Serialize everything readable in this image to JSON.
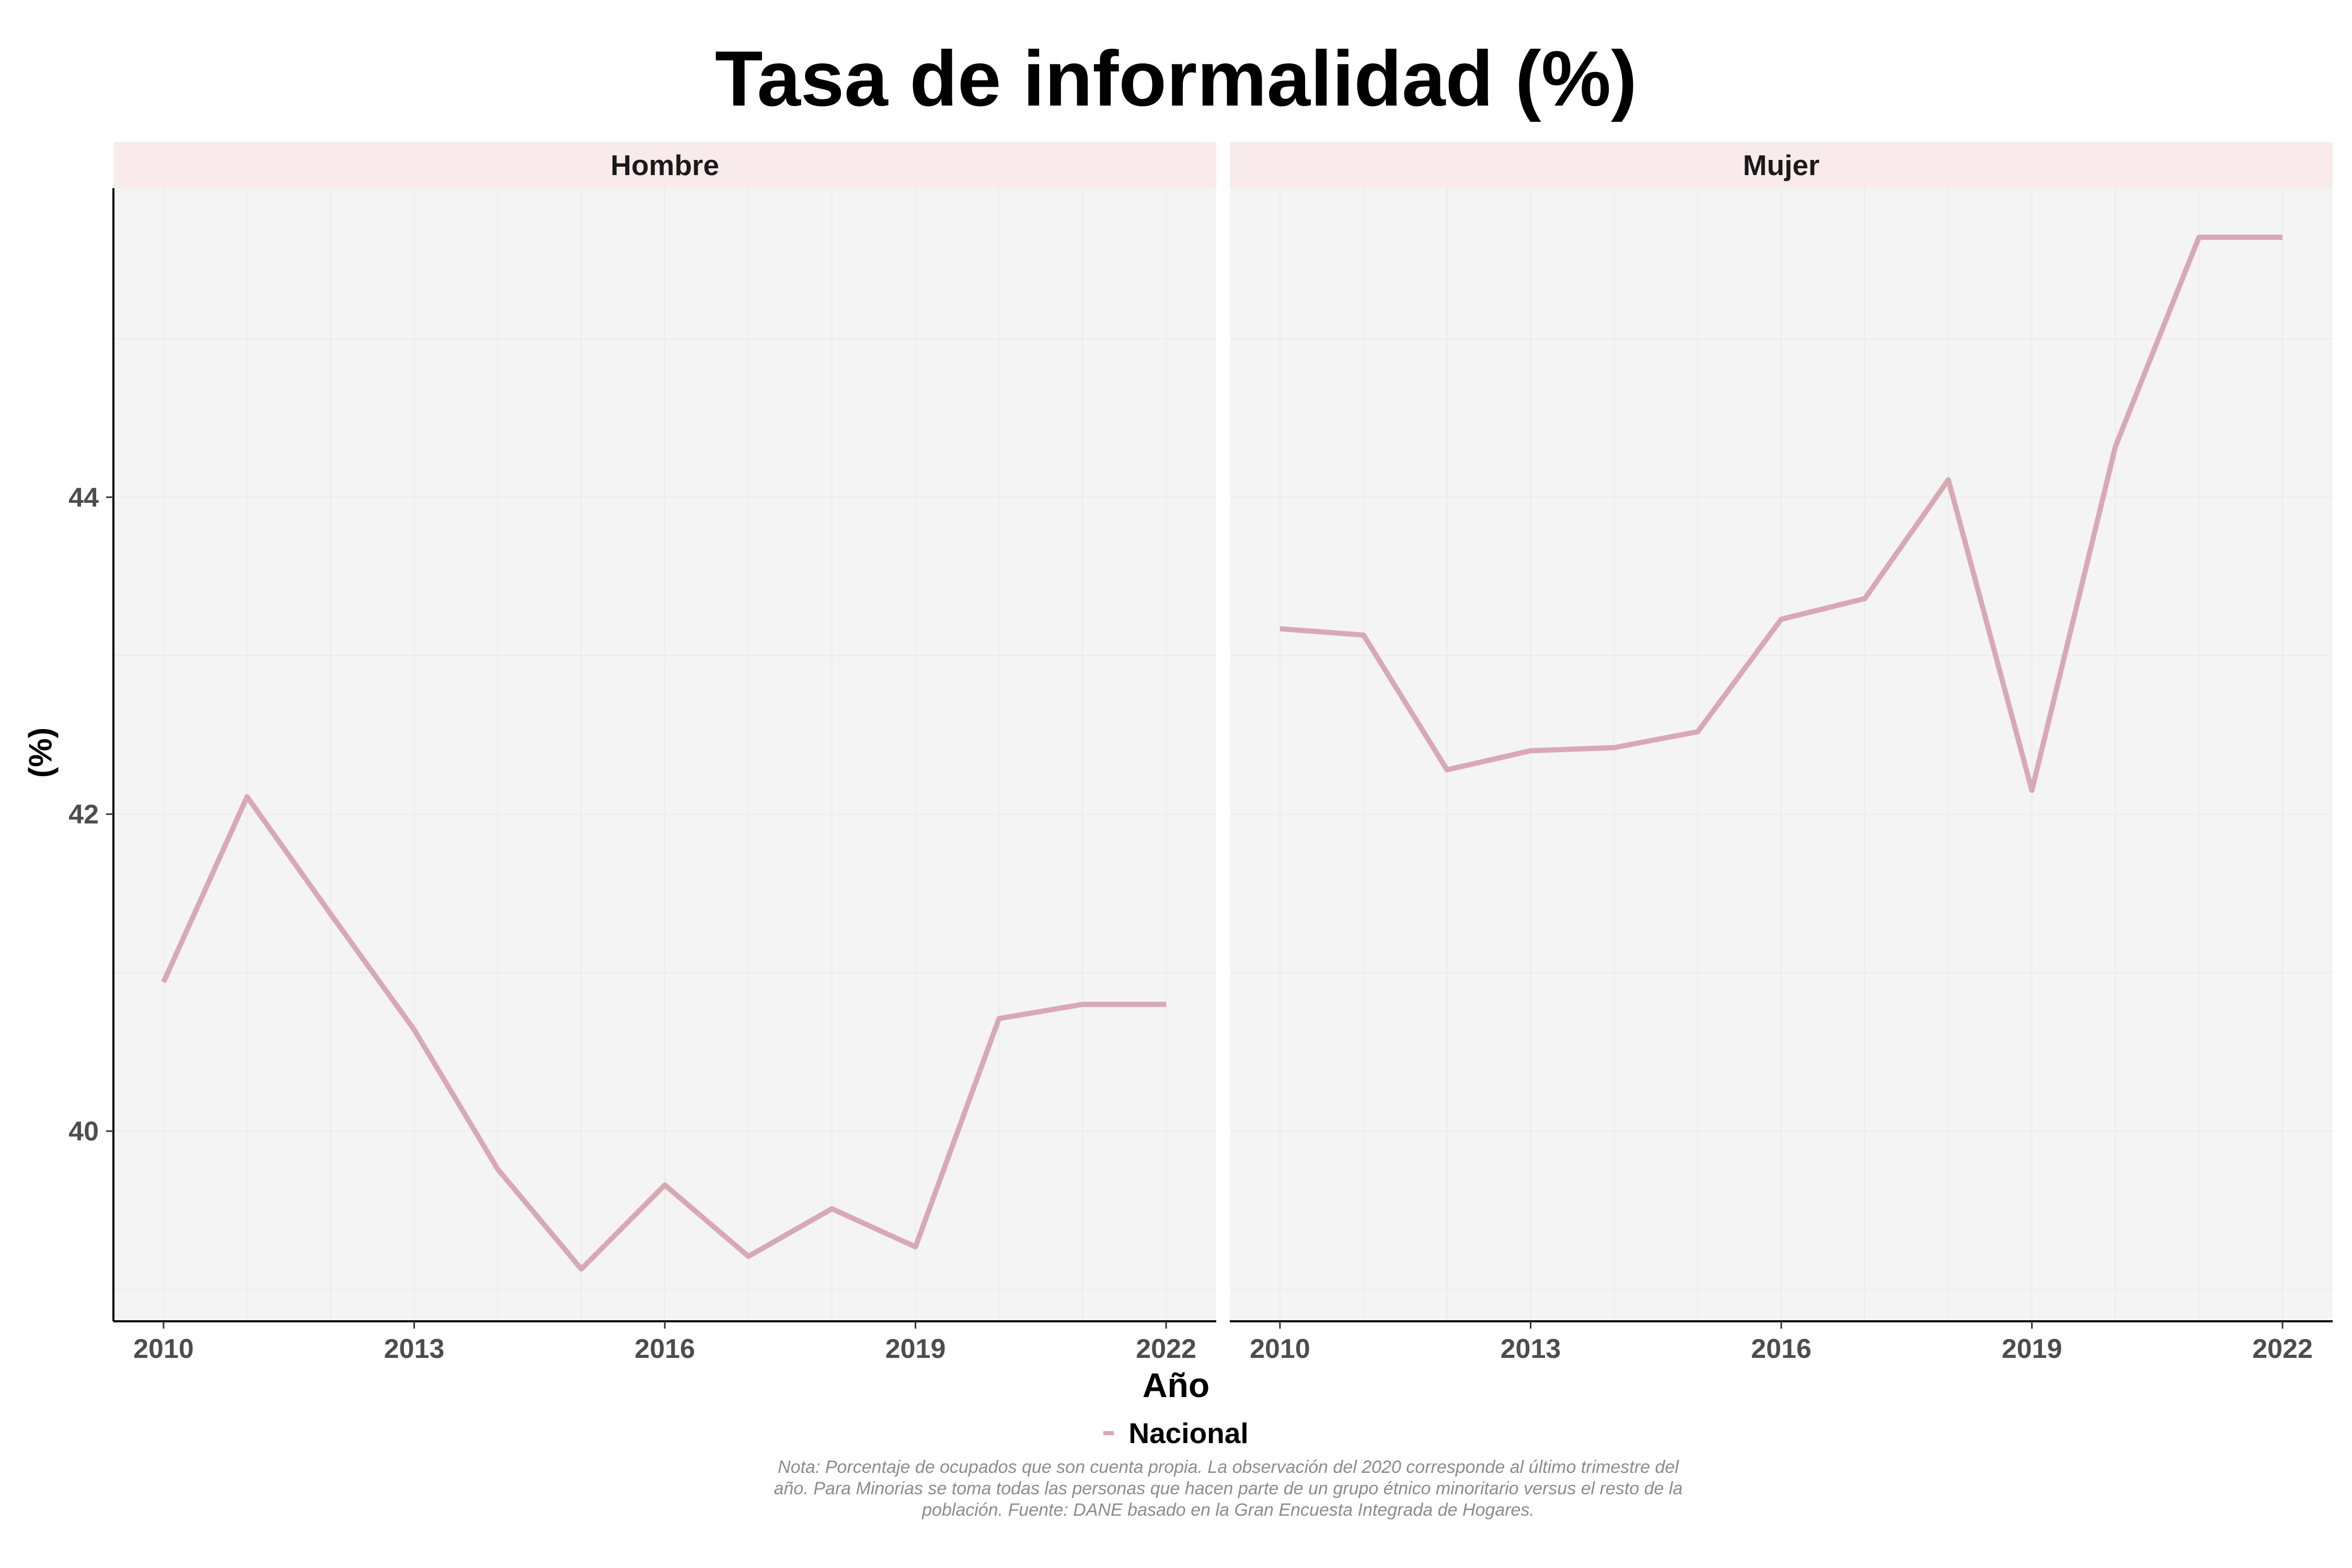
{
  "title": "Tasa de informalidad (%)",
  "xlabel": "Año",
  "ylabel": "(%)",
  "legend": {
    "label": "Nacional",
    "color": "#d8a9b5",
    "position": "bottom"
  },
  "caption": "Nota: Porcentaje de ocupados que son cuenta propia. La observación del 2020 corresponde al último trimestre del año. Para Minorias se toma todas las personas que hacen parte de un grupo étnico minoritario versus el resto de la población. Fuente: DANE basado en la Gran Encuesta Integrada de Hogares.",
  "colors": {
    "strip": "#f9ebeb",
    "panel": "#f4f4f4",
    "grid": "#ebebeb",
    "line": "#d8a9b5"
  },
  "chart_data": {
    "type": "line",
    "facets": [
      "Hombre",
      "Mujer"
    ],
    "x": [
      2010,
      2011,
      2012,
      2013,
      2014,
      2015,
      2016,
      2017,
      2018,
      2019,
      2020,
      2021,
      2022
    ],
    "xticks": [
      2010,
      2013,
      2016,
      2019,
      2022
    ],
    "yticks": [
      40,
      42,
      44
    ],
    "xlim": [
      2009.4,
      2022.6
    ],
    "ylim": [
      38.8,
      45.95
    ],
    "grid": true,
    "series": [
      {
        "facet": "Hombre",
        "name": "Nacional",
        "values": [
          40.94,
          42.11,
          41.37,
          40.64,
          39.76,
          39.13,
          39.66,
          39.21,
          39.51,
          39.27,
          40.71,
          40.8,
          40.8
        ]
      },
      {
        "facet": "Mujer",
        "name": "Nacional",
        "values": [
          43.17,
          43.13,
          42.28,
          42.4,
          42.42,
          42.52,
          43.23,
          43.36,
          44.11,
          42.15,
          44.32,
          45.64,
          45.64
        ]
      }
    ]
  }
}
